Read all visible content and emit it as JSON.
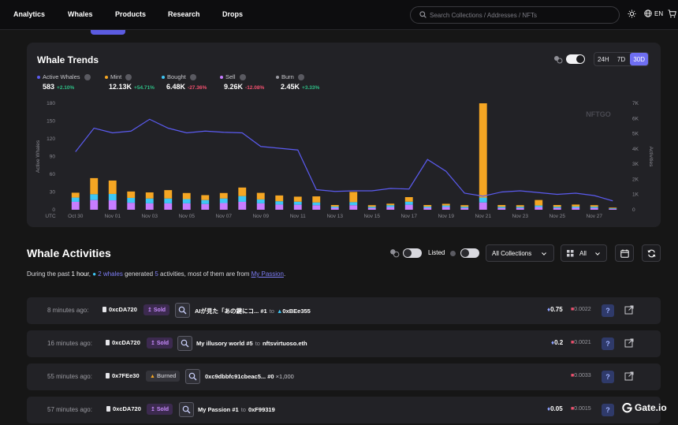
{
  "nav": {
    "items": [
      "Analytics",
      "Whales",
      "Products",
      "Research",
      "Drops"
    ],
    "search_placeholder": "Search Collections / Addresses / NFTs",
    "lang": "EN"
  },
  "trends": {
    "title": "Whale Trends",
    "ranges": [
      "24H",
      "7D",
      "30D"
    ],
    "active_range": "30D",
    "legend": [
      {
        "label": "Active Whales",
        "value": "583",
        "change": "+2.10%",
        "color": "#5b5bf0",
        "dir": "up"
      },
      {
        "label": "Mint",
        "value": "12.13K",
        "change": "+54.71%",
        "color": "#f5a623",
        "dir": "up"
      },
      {
        "label": "Bought",
        "value": "6.48K",
        "change": "-27.36%",
        "color": "#3ec6f5",
        "dir": "down"
      },
      {
        "label": "Sell",
        "value": "9.26K",
        "change": "-12.08%",
        "color": "#c77dff",
        "dir": "down"
      },
      {
        "label": "Burn",
        "value": "2.45K",
        "change": "+3.33%",
        "color": "#9a9aa1",
        "dir": "up"
      }
    ],
    "watermark": "NFTGO"
  },
  "chart_data": {
    "type": "bar",
    "x": [
      "Oct 30",
      "Oct 31",
      "Nov 01",
      "Nov 02",
      "Nov 03",
      "Nov 04",
      "Nov 05",
      "Nov 06",
      "Nov 07",
      "Nov 08",
      "Nov 09",
      "Nov 10",
      "Nov 11",
      "Nov 12",
      "Nov 13",
      "Nov 14",
      "Nov 15",
      "Nov 16",
      "Nov 17",
      "Nov 18",
      "Nov 19",
      "Nov 20",
      "Nov 21",
      "Nov 22",
      "Nov 23",
      "Nov 24",
      "Nov 25",
      "Nov 26",
      "Nov 27",
      "Nov 28"
    ],
    "xtick_labels": [
      "UTC",
      "Oct 30",
      "Nov 01",
      "Nov 03",
      "Nov 05",
      "Nov 07",
      "Nov 09",
      "Nov 11",
      "Nov 13",
      "Nov 15",
      "Nov 17",
      "Nov 19",
      "Nov 21",
      "Nov 23",
      "Nov 25",
      "Nov 27"
    ],
    "ylabel_left": "Active Whales",
    "ylabel_right": "Activities",
    "yticks_left": [
      0,
      30,
      60,
      90,
      120,
      150,
      180
    ],
    "yticks_right": [
      "0",
      "1K",
      "2K",
      "3K",
      "4K",
      "5K",
      "6K",
      "7K"
    ],
    "ylim_left": [
      0,
      180
    ],
    "ylim_right": [
      0,
      7000
    ],
    "series": [
      {
        "name": "Burn",
        "axis": "right",
        "values": [
          0,
          0,
          0,
          0,
          0,
          0,
          0,
          0,
          0,
          0,
          0,
          0,
          0,
          0,
          0,
          0,
          0,
          0,
          0,
          0,
          0,
          0,
          0,
          0,
          0,
          0,
          0,
          0,
          0,
          0
        ]
      },
      {
        "name": "Sell",
        "axis": "right",
        "values": [
          520,
          640,
          620,
          460,
          420,
          420,
          420,
          380,
          440,
          520,
          420,
          340,
          330,
          300,
          130,
          300,
          120,
          180,
          330,
          130,
          180,
          120,
          480,
          120,
          120,
          180,
          120,
          130,
          120,
          60
        ]
      },
      {
        "name": "Bought",
        "axis": "right",
        "values": [
          280,
          380,
          420,
          320,
          320,
          320,
          280,
          260,
          300,
          380,
          260,
          220,
          200,
          180,
          80,
          200,
          80,
          120,
          200,
          80,
          100,
          80,
          320,
          80,
          80,
          100,
          80,
          80,
          80,
          40
        ]
      },
      {
        "name": "Mint",
        "axis": "right",
        "values": [
          320,
          1060,
          880,
          420,
          400,
          550,
          400,
          320,
          360,
          560,
          430,
          380,
          330,
          400,
          100,
          670,
          100,
          100,
          300,
          100,
          110,
          100,
          6200,
          110,
          100,
          360,
          110,
          130,
          100,
          40
        ]
      },
      {
        "name": "Active Whales",
        "axis": "left",
        "type": "line",
        "values": [
          98,
          138,
          130,
          133,
          153,
          138,
          130,
          133,
          131,
          130,
          107,
          104,
          101,
          34,
          31,
          32,
          32,
          36,
          35,
          85,
          65,
          28,
          23,
          30,
          32,
          29,
          26,
          28,
          24,
          15
        ]
      }
    ]
  },
  "activities": {
    "title": "Whale Activities",
    "summary": {
      "prefix": "During the past ",
      "period": "1 hour",
      "mid1": ", ",
      "whales": "2 whales",
      "mid2": " generated ",
      "count": "5",
      "mid3": " activities, most of them are from ",
      "collection": "My Passion",
      "end": "."
    },
    "listed_label": "Listed",
    "collections_select": "All Collections",
    "type_select": "All",
    "rows": [
      {
        "time": "8 minutes ago:",
        "whale": "0xcDA720",
        "action": "Sold",
        "nft": "AIが見た「あの鍵にコ...",
        "token": "#1",
        "to": "to",
        "recipient": "0xBEe355",
        "price": "0.75",
        "fee": "0.0022"
      },
      {
        "time": "16 minutes ago:",
        "whale": "0xcDA720",
        "action": "Sold",
        "nft": "My illusory world #5",
        "token": "",
        "to": "to",
        "recipient": "nftsvirtuoso.eth",
        "price": "0.2",
        "fee": "0.0021"
      },
      {
        "time": "55 minutes ago:",
        "whale": "0x7FEe30",
        "action": "Burned",
        "nft": "0xc9dbbfc91cbeac5...",
        "token": "#0",
        "to": "",
        "recipient": "×1,000",
        "price": "",
        "fee": "0.0033"
      },
      {
        "time": "57 minutes ago:",
        "whale": "0xcDA720",
        "action": "Sold",
        "nft": "My Passion #1",
        "token": "",
        "to": "to",
        "recipient": "0xF99319",
        "price": "0.05",
        "fee": "0.0015"
      }
    ]
  },
  "brand": "Gate.io"
}
